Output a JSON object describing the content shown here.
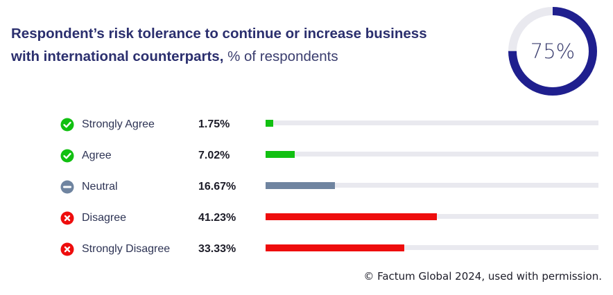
{
  "title": {
    "bold": "Respondent’s risk tolerance to continue or increase business with international counterparts,",
    "light": " % of respondents"
  },
  "donut": {
    "value": 75,
    "label": "75%",
    "color": "#1f1f8e",
    "track_color": "#e9e9ef"
  },
  "chart_data": {
    "type": "bar",
    "orientation": "horizontal",
    "title": "Respondent’s risk tolerance to continue or increase business with international counterparts, % of respondents",
    "categories": [
      "Strongly Agree",
      "Agree",
      "Neutral",
      "Disagree",
      "Strongly Disagree"
    ],
    "values": [
      1.75,
      7.02,
      16.67,
      41.23,
      33.33
    ],
    "value_labels": [
      "1.75%",
      "7.02%",
      "16.67%",
      "41.23%",
      "33.33%"
    ],
    "colors": [
      "#11c011",
      "#11c011",
      "#6f84a0",
      "#ee0d0d",
      "#ee0d0d"
    ],
    "icons": [
      "check-icon",
      "check-icon",
      "minus-icon",
      "x-icon",
      "x-icon"
    ],
    "xlim": [
      0,
      80
    ],
    "grid": false,
    "legend": "none"
  },
  "footer": "© Factum Global 2024, used with permission."
}
